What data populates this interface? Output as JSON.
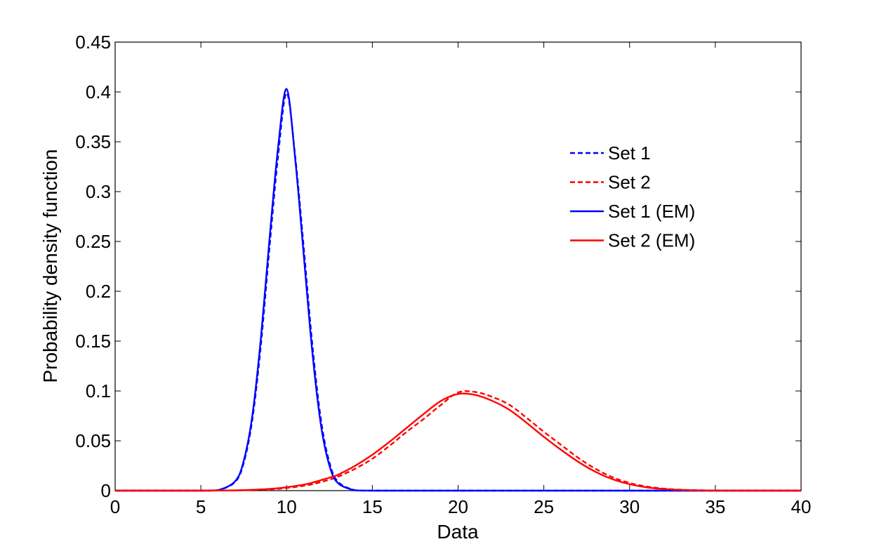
{
  "chart_data": {
    "type": "line",
    "title": "",
    "xlabel": "Data",
    "ylabel": "Probability density function",
    "xlim": [
      0,
      40
    ],
    "ylim": [
      0,
      0.45
    ],
    "xticks": [
      "0",
      "5",
      "10",
      "15",
      "20",
      "25",
      "30",
      "35",
      "40"
    ],
    "yticks": [
      "0",
      "0.05",
      "0.1",
      "0.15",
      "0.2",
      "0.25",
      "0.3",
      "0.35",
      "0.4",
      "0.45"
    ],
    "grid": false,
    "legend_position": "top-right, inside plot",
    "x": [
      0,
      2,
      4,
      5,
      6,
      7,
      7.5,
      8,
      8.5,
      9,
      9.5,
      10,
      10.5,
      11,
      11.5,
      12,
      12.5,
      13,
      14,
      15,
      16,
      17,
      18,
      19,
      20,
      21,
      22,
      23,
      24,
      25,
      26,
      27,
      28,
      29,
      30,
      31,
      32,
      33,
      34,
      36,
      38,
      40
    ],
    "series": [
      {
        "name": "Set 1",
        "color": "#0000ff",
        "style": "dashed",
        "values": [
          0,
          0,
          0,
          0,
          0.0004,
          0.0088,
          0.028,
          0.0712,
          0.1463,
          0.2435,
          0.3354,
          0.3989,
          0.3354,
          0.2435,
          0.1463,
          0.0712,
          0.028,
          0.0088,
          0.0004,
          0,
          0,
          0,
          0,
          0,
          0,
          0,
          0,
          0,
          0,
          0,
          0,
          0,
          0,
          0,
          0,
          0,
          0,
          0,
          0,
          0,
          0,
          0
        ]
      },
      {
        "name": "Set 2",
        "color": "#ff0000",
        "style": "dashed",
        "values": [
          0,
          0,
          0,
          0,
          0.0001,
          0.0002,
          0.0004,
          0.0006,
          0.0009,
          0.0013,
          0.0018,
          0.0027,
          0.0037,
          0.0049,
          0.0064,
          0.0086,
          0.011,
          0.014,
          0.022,
          0.032,
          0.045,
          0.059,
          0.072,
          0.086,
          0.0985,
          0.099,
          0.094,
          0.086,
          0.073,
          0.059,
          0.046,
          0.033,
          0.022,
          0.0135,
          0.0077,
          0.0041,
          0.002,
          0.0009,
          0.0004,
          0,
          0,
          0
        ]
      },
      {
        "name": "Set 1 (EM)",
        "color": "#0000ff",
        "style": "solid",
        "values": [
          0,
          0,
          0,
          0,
          0.0005,
          0.0095,
          0.03,
          0.075,
          0.153,
          0.252,
          0.344,
          0.403,
          0.333,
          0.236,
          0.139,
          0.066,
          0.025,
          0.0075,
          0.0003,
          0,
          0,
          0,
          0,
          0,
          0,
          0,
          0,
          0,
          0,
          0,
          0,
          0,
          0,
          0,
          0,
          0,
          0,
          0,
          0,
          0,
          0,
          0
        ]
      },
      {
        "name": "Set 2 (EM)",
        "color": "#ff0000",
        "style": "solid",
        "values": [
          0,
          0,
          0,
          0,
          0.0001,
          0.0003,
          0.0005,
          0.0008,
          0.0012,
          0.0017,
          0.0024,
          0.0034,
          0.0046,
          0.006,
          0.008,
          0.0105,
          0.013,
          0.016,
          0.025,
          0.036,
          0.049,
          0.063,
          0.077,
          0.09,
          0.097,
          0.096,
          0.09,
          0.081,
          0.068,
          0.054,
          0.041,
          0.029,
          0.019,
          0.0115,
          0.0065,
          0.0033,
          0.0016,
          0.0007,
          0.0003,
          0,
          0,
          0
        ]
      }
    ]
  }
}
